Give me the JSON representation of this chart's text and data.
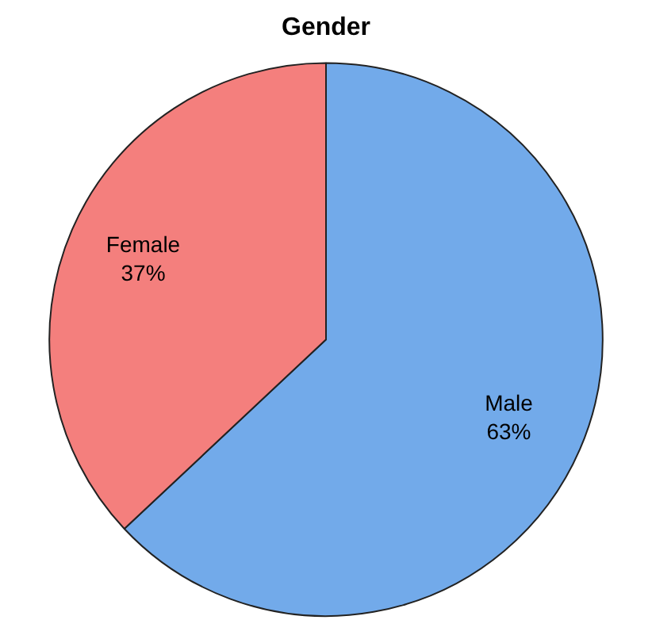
{
  "chart_data": {
    "type": "pie",
    "title": "Gender",
    "categories": [
      "Male",
      "Female"
    ],
    "values": [
      63,
      37
    ],
    "value_labels": [
      "63%",
      "37%"
    ],
    "colors": [
      "#72aaea",
      "#f47f7d"
    ],
    "legend": false
  }
}
